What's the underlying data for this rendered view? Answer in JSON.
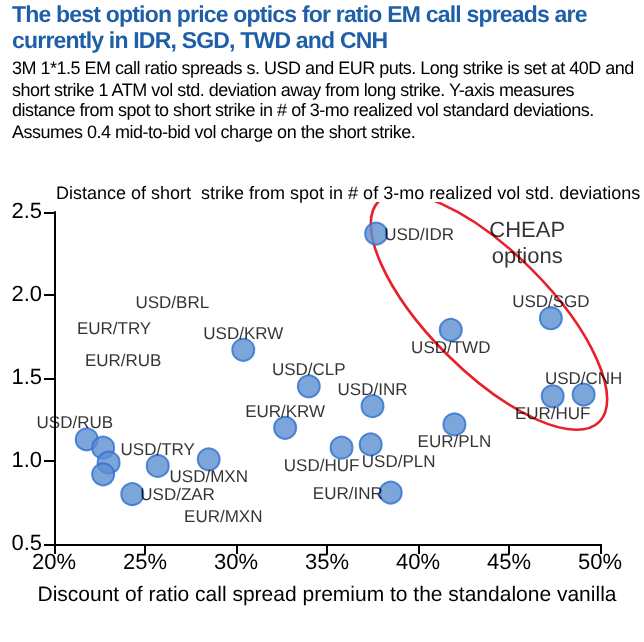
{
  "chart_data": {
    "type": "scatter",
    "title": "The best option price optics for ratio EM call spreads are currently in IDR, SGD, TWD and CNH",
    "subtitle": "3M 1*1.5 EM call ratio spreads s. USD and EUR puts. Long strike is set at 40D and short strike 1 ATM vol std. deviation away from long strike. Y-axis measures distance from spot to short strike in # of 3-mo realized vol standard deviations. Assumes 0.4 mid-to-bid vol charge on the short strike.",
    "xlabel": "Discount of ratio call spread premium to the standalone vanilla",
    "ylabel": "Distance of short  strike from spot in # of 3-mo realized vol std. deviations",
    "x": [
      37.7,
      47.3,
      41.8,
      49.1,
      47.4,
      42.0,
      37.4,
      35.8,
      37.5,
      34.0,
      38.5,
      32.7,
      30.4,
      28.5,
      25.7,
      24.3,
      21.8,
      22.7,
      23.0,
      22.7
    ],
    "series": [
      {
        "color": "#5b8fd0",
        "values": [
          2.37,
          1.86,
          1.79,
          1.4,
          1.39,
          1.22,
          1.1,
          1.08,
          1.33,
          1.45,
          0.81,
          1.2,
          1.67,
          1.01,
          0.97,
          0.8,
          1.13,
          1.08,
          0.99,
          0.92
        ]
      }
    ],
    "xlim": [
      20,
      50
    ],
    "xticks": [
      {
        "value": 20,
        "label": "20%"
      },
      {
        "value": 25,
        "label": "25%"
      },
      {
        "value": 30,
        "label": "30%"
      },
      {
        "value": 35,
        "label": "35%"
      },
      {
        "value": 40,
        "label": "40%"
      },
      {
        "value": 45,
        "label": "45%"
      },
      {
        "value": 50,
        "label": "50%"
      }
    ],
    "ylim": [
      0.5,
      2.5
    ],
    "yticks": [
      0.5,
      {
        "value": 1,
        "label": "1.0"
      },
      1.5,
      {
        "value": 2,
        "label": "2.0"
      },
      2.5
    ],
    "marker": "circle",
    "annotations": [
      {
        "text": "USD/IDR",
        "x": 37.7,
        "y": 2.37
      },
      {
        "text": "USD/SGD",
        "x": 47.3,
        "y": 1.86
      },
      {
        "text": "USD/TWD",
        "x": 41.8,
        "y": 1.79
      },
      {
        "text": "USD/CNH",
        "x": 49.1,
        "y": 1.4
      },
      {
        "text": "EUR/HUF",
        "x": 47.4,
        "y": 1.39
      },
      {
        "text": "EUR/PLN",
        "x": 42.0,
        "y": 1.22
      },
      {
        "text": "USD/PLN",
        "x": 37.4,
        "y": 1.1
      },
      {
        "text": "USD/HUF",
        "x": 35.8,
        "y": 1.08
      },
      {
        "text": "USD/INR",
        "x": 37.5,
        "y": 1.33
      },
      {
        "text": "USD/CLP",
        "x": 34.0,
        "y": 1.45
      },
      {
        "text": "EUR/INR",
        "x": 38.5,
        "y": 0.81
      },
      {
        "text": "EUR/KRW",
        "x": 32.7,
        "y": 1.2
      },
      {
        "text": "USD/KRW",
        "x": 30.4,
        "y": 1.67
      },
      {
        "text": "USD/MXN",
        "x": 28.5,
        "y": 1.01
      },
      {
        "text": "USD/TRY",
        "x": 25.7,
        "y": 0.97
      },
      {
        "text": "USD/ZAR",
        "x": 24.3,
        "y": 0.8
      },
      {
        "text": "USD/RUB",
        "x": 21.8,
        "y": 1.13
      },
      "EUR/MXN",
      "EUR/RUB",
      "EUR/TRY",
      "USD/BRL",
      "CHEAP\noptions"
    ]
  }
}
